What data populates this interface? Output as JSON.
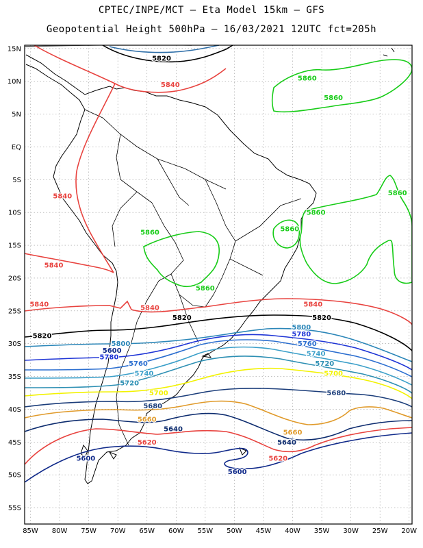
{
  "header": {
    "line1": "CPTEC/INPE/MCT –  Eta Model 15km – GFS",
    "line2": "Geopotential Height 500hPa – 16/03/2021 12UTC fct=205h"
  },
  "axes": {
    "lat_labels": [
      "15N",
      "10N",
      "5N",
      "EQ",
      "5S",
      "10S",
      "15S",
      "20S",
      "25S",
      "30S",
      "35S",
      "40S",
      "45S",
      "50S",
      "55S"
    ],
    "lon_labels": [
      "85W",
      "80W",
      "75W",
      "70W",
      "65W",
      "60W",
      "55W",
      "50W",
      "45W",
      "40W",
      "35W",
      "30W",
      "25W",
      "20W"
    ],
    "lat_range": [
      15.5,
      -57.5
    ],
    "lon_range": [
      -86,
      -19.5
    ],
    "grid": "dotted"
  },
  "contour_colors": {
    "5560": "#5a5a5a",
    "5600": "#102a8a",
    "5620": "#e8433f",
    "5640": "#0c2b6e",
    "5660": "#e09a2a",
    "5680": "#1b3d7a",
    "5700": "#f2f200",
    "5720": "#2d8fb3",
    "5740": "#3b9fc9",
    "5760": "#2c6fd0",
    "5780": "#1f35d6",
    "5800": "#2b86b8",
    "5820": "#000000",
    "5840": "#e8433f",
    "5860": "#18cc18"
  },
  "contours": [
    {
      "level": "5600",
      "labels": [
        {
          "text": "5600",
          "lon": -71,
          "lat": -31
        },
        {
          "text": "5600",
          "lon": -49.5,
          "lat": -49.5
        },
        {
          "text": "5600",
          "lon": -75.5,
          "lat": -47.5
        }
      ]
    },
    {
      "level": "5620",
      "labels": [
        {
          "text": "5620",
          "lon": -65,
          "lat": -45
        },
        {
          "text": "5620",
          "lon": -42.5,
          "lat": -47.5
        }
      ]
    },
    {
      "level": "5640",
      "labels": [
        {
          "text": "5640",
          "lon": -60.5,
          "lat": -43
        },
        {
          "text": "5640",
          "lon": -41,
          "lat": -45
        }
      ]
    },
    {
      "level": "5660",
      "labels": [
        {
          "text": "5660",
          "lon": -65,
          "lat": -41.5
        },
        {
          "text": "5660",
          "lon": -40,
          "lat": -43.5
        }
      ]
    },
    {
      "level": "5680",
      "labels": [
        {
          "text": "5680",
          "lon": -64,
          "lat": -39.5
        },
        {
          "text": "5680",
          "lon": -32.5,
          "lat": -37.5
        }
      ]
    },
    {
      "level": "5700",
      "labels": [
        {
          "text": "5700",
          "lon": -63,
          "lat": -37.5
        },
        {
          "text": "5700",
          "lon": -33,
          "lat": -34.5
        }
      ]
    },
    {
      "level": "5720",
      "labels": [
        {
          "text": "5720",
          "lon": -68,
          "lat": -36
        },
        {
          "text": "5720",
          "lon": -34.5,
          "lat": -33
        }
      ]
    },
    {
      "level": "5740",
      "labels": [
        {
          "text": "5740",
          "lon": -65.5,
          "lat": -34.5
        },
        {
          "text": "5740",
          "lon": -36,
          "lat": -31.5
        }
      ]
    },
    {
      "level": "5760",
      "labels": [
        {
          "text": "5760",
          "lon": -66.5,
          "lat": -33
        },
        {
          "text": "5760",
          "lon": -37.5,
          "lat": -30
        }
      ]
    },
    {
      "level": "5780",
      "labels": [
        {
          "text": "5780",
          "lon": -71.5,
          "lat": -32
        },
        {
          "text": "5780",
          "lon": -38.5,
          "lat": -28.5
        }
      ]
    },
    {
      "level": "5800",
      "labels": [
        {
          "text": "5800",
          "lon": -69.5,
          "lat": -30
        },
        {
          "text": "5800",
          "lon": -38.5,
          "lat": -27.5
        }
      ]
    },
    {
      "level": "5820",
      "labels": [
        {
          "text": "5820",
          "lon": -62.5,
          "lat": 13.5
        },
        {
          "text": "5820",
          "lon": -83,
          "lat": -28.8
        },
        {
          "text": "5820",
          "lon": -59,
          "lat": -26
        },
        {
          "text": "5820",
          "lon": -35,
          "lat": -26
        }
      ]
    },
    {
      "level": "5840",
      "labels": [
        {
          "text": "5840",
          "lon": -61,
          "lat": 9.5
        },
        {
          "text": "5840",
          "lon": -79.5,
          "lat": -7.5
        },
        {
          "text": "5840",
          "lon": -81,
          "lat": -18
        },
        {
          "text": "5840",
          "lon": -83.5,
          "lat": -24
        },
        {
          "text": "5840",
          "lon": -64.5,
          "lat": -24.5
        },
        {
          "text": "5840",
          "lon": -36.5,
          "lat": -24
        }
      ]
    },
    {
      "level": "5860",
      "labels": [
        {
          "text": "5860",
          "lon": -37.5,
          "lat": 10.5
        },
        {
          "text": "5860",
          "lon": -33,
          "lat": 7.5
        },
        {
          "text": "5860",
          "lon": -22,
          "lat": -7
        },
        {
          "text": "5860",
          "lon": -36,
          "lat": -10
        },
        {
          "text": "5860",
          "lon": -40.5,
          "lat": -12.5
        },
        {
          "text": "5860",
          "lon": -64.5,
          "lat": -13
        },
        {
          "text": "5860",
          "lon": -55,
          "lat": -21.5
        }
      ]
    }
  ]
}
